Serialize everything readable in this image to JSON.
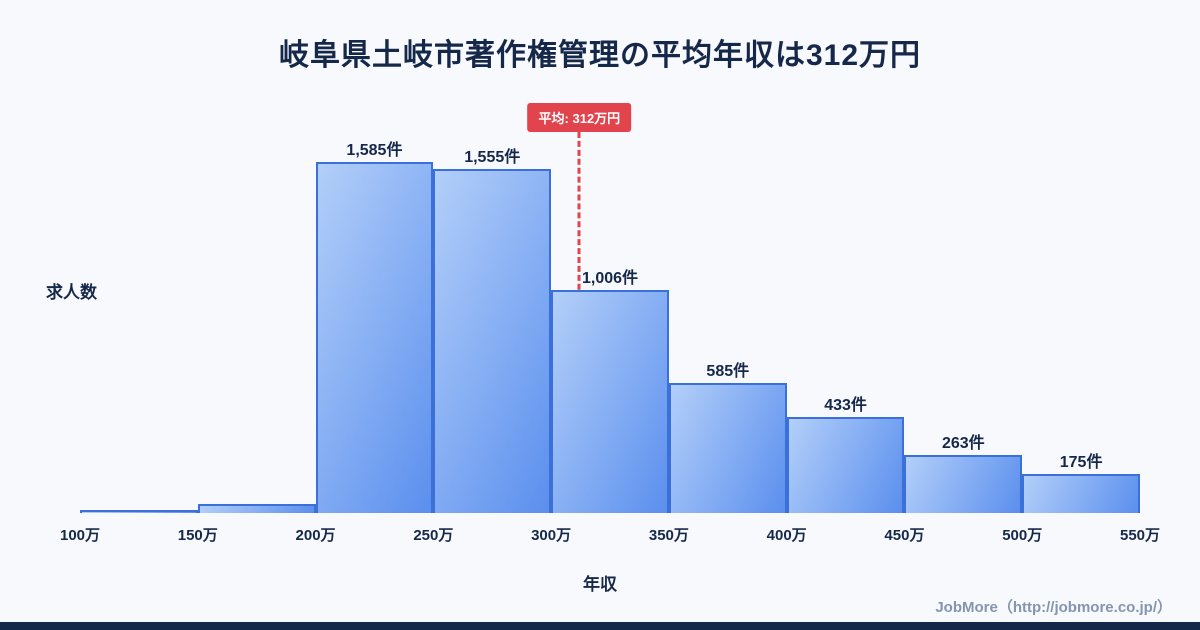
{
  "title": "岐阜県土岐市著作権管理の平均年収は312万円",
  "chart_data": {
    "type": "bar",
    "title": "岐阜県土岐市著作権管理の平均年収は312万円",
    "categories": [
      "100万-150万",
      "150万-200万",
      "200万-250万",
      "250万-300万",
      "300万-350万",
      "350万-400万",
      "400万-450万",
      "450万-500万",
      "500万-550万"
    ],
    "values": [
      12,
      40,
      1585,
      1555,
      1006,
      585,
      433,
      263,
      175
    ],
    "bar_labels": [
      "",
      "",
      "1,585件",
      "1,555件",
      "1,006件",
      "585件",
      "433件",
      "263件",
      "175件"
    ],
    "x_ticks": [
      {
        "value": 100,
        "label": "100万"
      },
      {
        "value": 150,
        "label": "150万"
      },
      {
        "value": 200,
        "label": "200万"
      },
      {
        "value": 250,
        "label": "250万"
      },
      {
        "value": 300,
        "label": "300万"
      },
      {
        "value": 350,
        "label": "350万"
      },
      {
        "value": 400,
        "label": "400万"
      },
      {
        "value": 450,
        "label": "450万"
      },
      {
        "value": 500,
        "label": "500万"
      },
      {
        "value": 550,
        "label": "550万"
      }
    ],
    "x_range": [
      100,
      550
    ],
    "ylim": [
      0,
      1700
    ],
    "xlabel": "年収",
    "ylabel": "求人数",
    "grid": false,
    "legend": "none",
    "average": {
      "value": 312,
      "label": "平均: 312万円"
    }
  },
  "footer": {
    "credit": "JobMore（http://jobmore.co.jp/）"
  },
  "colors": {
    "background": "#f7f9fd",
    "title_text": "#16284a",
    "bar_fill_top": "#b3cff9",
    "bar_fill_bottom": "#5b8fee",
    "bar_border": "#3a70d8",
    "average_accent": "#e2444d",
    "footer_text": "#8495af",
    "bottom_bar": "#16284a"
  }
}
